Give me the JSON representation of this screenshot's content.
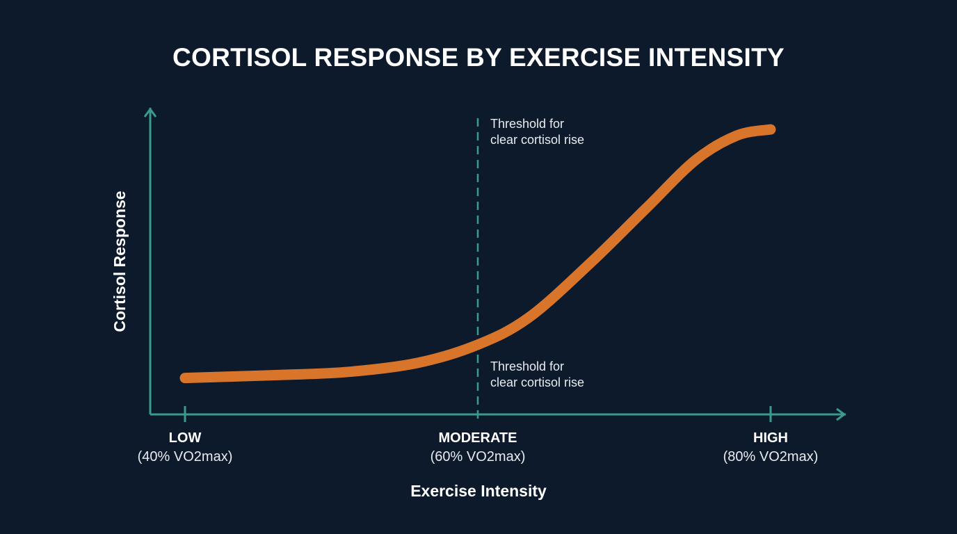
{
  "chart_data": {
    "type": "line",
    "title": "CORTISOL RESPONSE BY EXERCISE INTENSITY",
    "xlabel": "Exercise Intensity",
    "ylabel": "Cortisol Response",
    "xlim": [
      37.6,
      85
    ],
    "ylim": [
      0,
      1
    ],
    "x_ticks": [
      {
        "value": 40,
        "label": "LOW",
        "sublabel": "(40% VO2max)"
      },
      {
        "value": 60,
        "label": "MODERATE",
        "sublabel": "(60% VO2max)"
      },
      {
        "value": 80,
        "label": "HIGH",
        "sublabel": "(80% VO2max)"
      }
    ],
    "series": [
      {
        "x": [
          40,
          46.4,
          51.1,
          55.9,
          60,
          63.5,
          67.7,
          71.5,
          74.9,
          77.7,
          80
        ],
        "y": [
          0.12,
          0.13,
          0.14,
          0.17,
          0.23,
          0.32,
          0.5,
          0.68,
          0.84,
          0.92,
          0.94
        ]
      }
    ],
    "threshold": {
      "x": 60,
      "style": "dashed"
    },
    "annotations": [
      {
        "text_line1": "Threshold for",
        "text_line2": "clear cortisol rise",
        "position": "top"
      },
      {
        "text_line1": "Threshold for",
        "text_line2": "clear cortisol rise",
        "position": "below-curve"
      }
    ],
    "grid": false,
    "colors": {
      "background": "#0c1a2c",
      "axis": "#3a9a8c",
      "curve": "#d9752a",
      "threshold": "#3a9a8c"
    }
  }
}
